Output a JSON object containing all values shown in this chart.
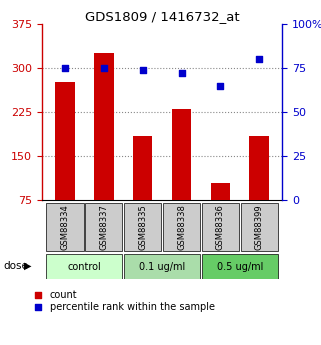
{
  "title": "GDS1809 / 1416732_at",
  "samples": [
    "GSM88334",
    "GSM88337",
    "GSM88335",
    "GSM88338",
    "GSM88336",
    "GSM88399"
  ],
  "bar_values": [
    277,
    325,
    185,
    230,
    105,
    185
  ],
  "dot_values": [
    75,
    75,
    74,
    72,
    65,
    80
  ],
  "bar_color": "#cc0000",
  "dot_color": "#0000cc",
  "left_ylim": [
    75,
    375
  ],
  "right_ylim": [
    0,
    100
  ],
  "left_yticks": [
    75,
    150,
    225,
    300,
    375
  ],
  "right_yticks": [
    0,
    25,
    50,
    75,
    100
  ],
  "right_yticklabels": [
    "0",
    "25",
    "50",
    "75",
    "100%"
  ],
  "groups": [
    {
      "label": "control",
      "indices": [
        0,
        1
      ],
      "color": "#ccffcc"
    },
    {
      "label": "0.1 ug/ml",
      "indices": [
        2,
        3
      ],
      "color": "#aaddaa"
    },
    {
      "label": "0.5 ug/ml",
      "indices": [
        4,
        5
      ],
      "color": "#66cc66"
    }
  ],
  "dose_label": "dose",
  "legend_count": "count",
  "legend_pct": "percentile rank within the sample",
  "grid_color": "#888888",
  "background_color": "#ffffff",
  "sample_box_color": "#cccccc"
}
